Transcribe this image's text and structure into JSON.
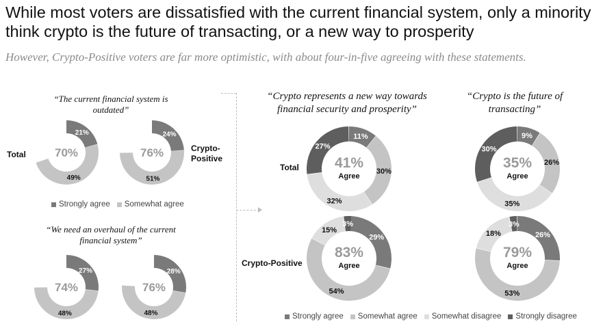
{
  "header": {
    "title": "While most voters are dissatisfied with the current financial system, only a minority think crypto is the future of transacting, or a new way to prosperity",
    "subtitle": "However, Crypto-Positive voters are far more optimistic, with about four-in-five agreeing with these statements."
  },
  "colors": {
    "strongly_agree": "#7a7a7a",
    "somewhat_agree": "#c4c4c4",
    "somewhat_disagree": "#dedede",
    "strongly_disagree": "#5e5e5e",
    "center_text": "#9a9a9a"
  },
  "left_panel": {
    "q1": "“The current financial system is outdated”",
    "q2": "“We need an overhaul of the current financial system”",
    "label_total": "Total",
    "label_crypto": "Crypto-Positive",
    "legend": {
      "strongly_agree": "Strongly agree",
      "somewhat_agree": "Somewhat agree"
    }
  },
  "right_panel": {
    "q3": "“Crypto represents a new way towards financial security and prosperity”",
    "q4": "“Crypto is the future of transacting”",
    "label_total": "Total",
    "label_crypto": "Crypto-Positive",
    "agree_word": "Agree",
    "legend": {
      "strongly_agree": "Strongly agree",
      "somewhat_agree": "Somewhat agree",
      "somewhat_disagree": "Somewhat disagree",
      "strongly_disagree": "Strongly disagree"
    }
  },
  "chart_data": [
    {
      "type": "pie",
      "question": "“The current financial system is outdated”",
      "group": "Total",
      "total_agree": "70%",
      "slices": [
        {
          "category": "Strongly agree",
          "value": 21
        },
        {
          "category": "Somewhat agree",
          "value": 49
        }
      ]
    },
    {
      "type": "pie",
      "question": "“The current financial system is outdated”",
      "group": "Crypto-Positive",
      "total_agree": "76%",
      "slices": [
        {
          "category": "Strongly agree",
          "value": 24
        },
        {
          "category": "Somewhat agree",
          "value": 51
        }
      ]
    },
    {
      "type": "pie",
      "question": "“We need an overhaul of the current financial system”",
      "group": "Total",
      "total_agree": "74%",
      "slices": [
        {
          "category": "Strongly agree",
          "value": 27
        },
        {
          "category": "Somewhat agree",
          "value": 48
        }
      ]
    },
    {
      "type": "pie",
      "question": "“We need an overhaul of the current financial system”",
      "group": "Crypto-Positive",
      "total_agree": "76%",
      "slices": [
        {
          "category": "Strongly agree",
          "value": 28
        },
        {
          "category": "Somewhat agree",
          "value": 48
        }
      ]
    },
    {
      "type": "pie",
      "question": "“Crypto represents a new way towards financial security and prosperity”",
      "group": "Total",
      "total_agree": "41%",
      "slices": [
        {
          "category": "Strongly agree",
          "value": 11
        },
        {
          "category": "Somewhat agree",
          "value": 30
        },
        {
          "category": "Somewhat disagree",
          "value": 32
        },
        {
          "category": "Strongly disagree",
          "value": 27
        }
      ]
    },
    {
      "type": "pie",
      "question": "“Crypto is the future of transacting”",
      "group": "Total",
      "total_agree": "35%",
      "slices": [
        {
          "category": "Strongly agree",
          "value": 9
        },
        {
          "category": "Somewhat agree",
          "value": 26
        },
        {
          "category": "Somewhat disagree",
          "value": 35
        },
        {
          "category": "Strongly disagree",
          "value": 30
        }
      ]
    },
    {
      "type": "pie",
      "question": "“Crypto represents a new way towards financial security and prosperity”",
      "group": "Crypto-Positive",
      "total_agree": "83%",
      "slices": [
        {
          "category": "Strongly agree",
          "value": 29
        },
        {
          "category": "Somewhat agree",
          "value": 54
        },
        {
          "category": "Somewhat disagree",
          "value": 15
        },
        {
          "category": "Strongly disagree",
          "value": 3
        }
      ]
    },
    {
      "type": "pie",
      "question": "“Crypto is the future of transacting”",
      "group": "Crypto-Positive",
      "total_agree": "79%",
      "slices": [
        {
          "category": "Strongly agree",
          "value": 26
        },
        {
          "category": "Somewhat agree",
          "value": 53
        },
        {
          "category": "Somewhat disagree",
          "value": 18
        },
        {
          "category": "Strongly disagree",
          "value": 3
        }
      ]
    }
  ]
}
